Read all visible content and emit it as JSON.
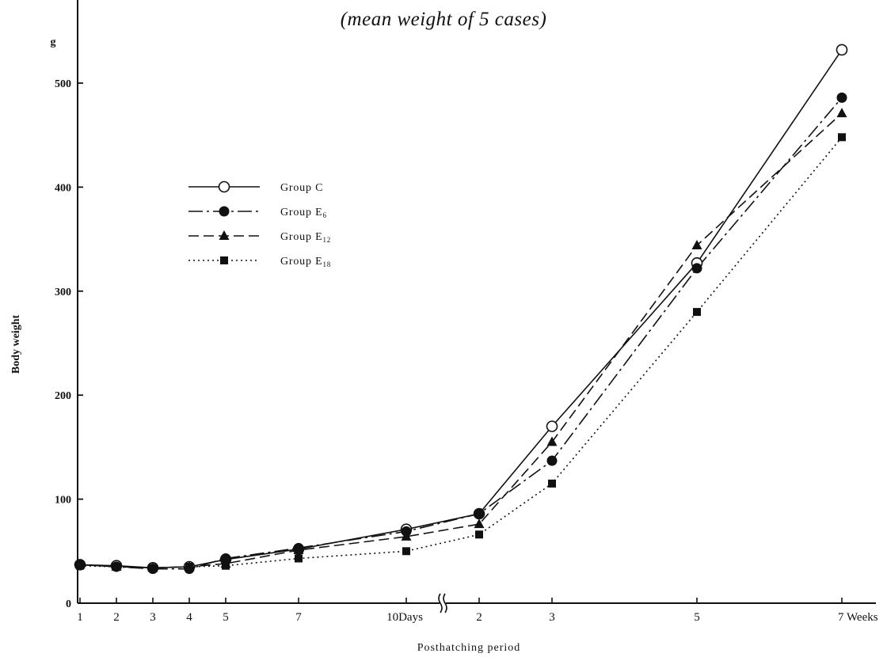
{
  "chart_data": {
    "type": "line",
    "title": "(mean weight of 5 cases)",
    "ylabel": "Body weight",
    "yunit": "g",
    "xlabel": "Posthatching period",
    "ylim": [
      0,
      500
    ],
    "yticks": [
      0,
      100,
      200,
      300,
      400,
      500
    ],
    "x_categories": [
      "1",
      "2",
      "3",
      "4",
      "5",
      "7",
      "10Days",
      "2",
      "3",
      "5",
      "7 Weeks"
    ],
    "x_units": [
      "day",
      "day",
      "day",
      "day",
      "day",
      "day",
      "day",
      "week",
      "week",
      "week",
      "week"
    ],
    "axis_break": "between 10 days and 2 weeks",
    "legend_position": "upper-left",
    "grid": false,
    "series": [
      {
        "name": "Group C",
        "name_base": "Group C",
        "name_sub": "",
        "marker": "open-circle",
        "line_style": "solid",
        "values": [
          37,
          36,
          34,
          35,
          42,
          52,
          71,
          86,
          170,
          327,
          532
        ]
      },
      {
        "name": "Group E6",
        "name_base": "Group E",
        "name_sub": "6",
        "marker": "filled-circle",
        "line_style": "dash-dot",
        "values": [
          37,
          35,
          33,
          33,
          43,
          53,
          69,
          86,
          137,
          322,
          486
        ]
      },
      {
        "name": "Group E12",
        "name_base": "Group E",
        "name_sub": "12",
        "marker": "filled-triangle",
        "line_style": "dashed",
        "values": [
          37,
          35,
          34,
          35,
          38,
          51,
          64,
          76,
          155,
          344,
          471
        ]
      },
      {
        "name": "Group E18",
        "name_base": "Group E",
        "name_sub": "18",
        "marker": "filled-square",
        "line_style": "dotted",
        "values": [
          36,
          35,
          34,
          35,
          36,
          43,
          50,
          66,
          115,
          280,
          448
        ]
      }
    ]
  }
}
